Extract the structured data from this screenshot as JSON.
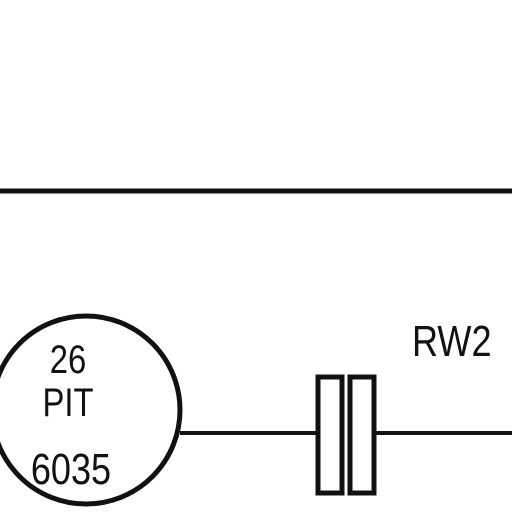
{
  "instrument_bubble": {
    "tag_number": "26",
    "function_code": "PIT",
    "loop_number": "6035"
  },
  "flow_element": {
    "symbol": "orifice-plate-icon"
  },
  "line_label": "RW2",
  "colors": {
    "ink": "#111111",
    "background": "#ffffff"
  }
}
